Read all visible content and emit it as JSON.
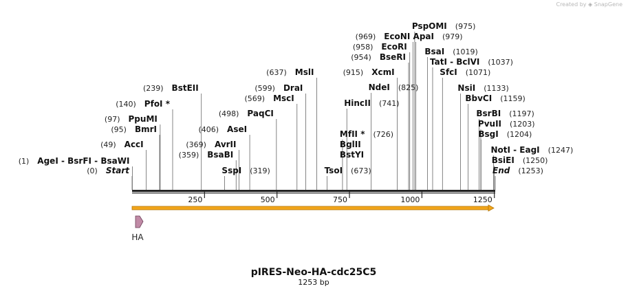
{
  "credit": {
    "text": "Created by",
    "brand": "SnapGene"
  },
  "title": "pIRES-Neo-HA-cdc25C5",
  "size_label": "1253 bp",
  "length": 1253,
  "ticks": [
    250,
    500,
    750,
    1000,
    1250
  ],
  "feature": {
    "name": "HA",
    "start": 1,
    "end": 27,
    "color": "#c08aa6"
  },
  "orf_color": "#f2a51a",
  "sites": [
    {
      "pos": 0,
      "pos_label": "(0)",
      "names": [
        "Start"
      ],
      "italic": true
    },
    {
      "pos": 1,
      "pos_label": "(1)",
      "names": [
        "AgeI",
        "BsrFI",
        "BsaWI"
      ]
    },
    {
      "pos": 49,
      "pos_label": "(49)",
      "names": [
        "AccI"
      ]
    },
    {
      "pos": 95,
      "pos_label": "(95)",
      "names": [
        "BmrI"
      ]
    },
    {
      "pos": 97,
      "pos_label": "(97)",
      "names": [
        "PpuMI"
      ]
    },
    {
      "pos": 140,
      "pos_label": "(140)",
      "names": [
        "PfoI *"
      ]
    },
    {
      "pos": 239,
      "pos_label": "(239)",
      "names": [
        "BstEII"
      ]
    },
    {
      "pos": 319,
      "pos_label": "(319)",
      "names": [
        "SspI"
      ],
      "label_right": true
    },
    {
      "pos": 359,
      "pos_label": "(359)",
      "names": [
        "BsaBI"
      ]
    },
    {
      "pos": 369,
      "pos_label": "(369)",
      "names": [
        "AvrII"
      ]
    },
    {
      "pos": 406,
      "pos_label": "(406)",
      "names": [
        "AseI"
      ]
    },
    {
      "pos": 498,
      "pos_label": "(498)",
      "names": [
        "PaqCI"
      ]
    },
    {
      "pos": 569,
      "pos_label": "(569)",
      "names": [
        "MscI"
      ]
    },
    {
      "pos": 599,
      "pos_label": "(599)",
      "names": [
        "DraI"
      ]
    },
    {
      "pos": 637,
      "pos_label": "(637)",
      "names": [
        "MslI"
      ]
    },
    {
      "pos": 673,
      "pos_label": "(673)",
      "names": [
        "TsoI"
      ],
      "label_right": true
    },
    {
      "pos": 726,
      "pos_label": "(726)",
      "names": [
        "MfII *"
      ],
      "label_right": true,
      "stack": [
        "BglII",
        "BstYI"
      ]
    },
    {
      "pos": 741,
      "pos_label": "(741)",
      "names": [
        "HincII"
      ],
      "label_right": true
    },
    {
      "pos": 825,
      "pos_label": "(825)",
      "names": [
        "NdeI"
      ],
      "label_right": true
    },
    {
      "pos": 915,
      "pos_label": "(915)",
      "names": [
        "XcmI"
      ]
    },
    {
      "pos": 954,
      "pos_label": "(954)",
      "names": [
        "BseRI"
      ]
    },
    {
      "pos": 958,
      "pos_label": "(958)",
      "names": [
        "EcoRI"
      ]
    },
    {
      "pos": 969,
      "pos_label": "(969)",
      "names": [
        "EcoNI"
      ]
    },
    {
      "pos": 975,
      "pos_label": "(975)",
      "names": [
        "PspOMI"
      ],
      "label_right": true
    },
    {
      "pos": 979,
      "pos_label": "(979)",
      "names": [
        "ApaI"
      ],
      "label_right": true
    },
    {
      "pos": 1019,
      "pos_label": "(1019)",
      "names": [
        "BsaI"
      ],
      "label_right": true
    },
    {
      "pos": 1037,
      "pos_label": "(1037)",
      "names": [
        "TatI",
        "BclVI"
      ],
      "label_right": true
    },
    {
      "pos": 1071,
      "pos_label": "(1071)",
      "names": [
        "SfcI"
      ],
      "label_right": true
    },
    {
      "pos": 1133,
      "pos_label": "(1133)",
      "names": [
        "NsiI"
      ],
      "label_right": true
    },
    {
      "pos": 1159,
      "pos_label": "(1159)",
      "names": [
        "BbvCI"
      ],
      "label_right": true
    },
    {
      "pos": 1197,
      "pos_label": "(1197)",
      "names": [
        "BsrBI"
      ],
      "label_right": true
    },
    {
      "pos": 1203,
      "pos_label": "(1203)",
      "names": [
        "PvuII"
      ],
      "label_right": true
    },
    {
      "pos": 1204,
      "pos_label": "(1204)",
      "names": [
        "BsgI"
      ],
      "label_right": true
    },
    {
      "pos": 1247,
      "pos_label": "(1247)",
      "names": [
        "NotI",
        "EagI"
      ],
      "label_right": true
    },
    {
      "pos": 1250,
      "pos_label": "(1250)",
      "names": [
        "BsiEI"
      ],
      "label_right": true
    },
    {
      "pos": 1253,
      "pos_label": "(1253)",
      "names": [
        "End"
      ],
      "label_right": true,
      "italic": true
    }
  ]
}
